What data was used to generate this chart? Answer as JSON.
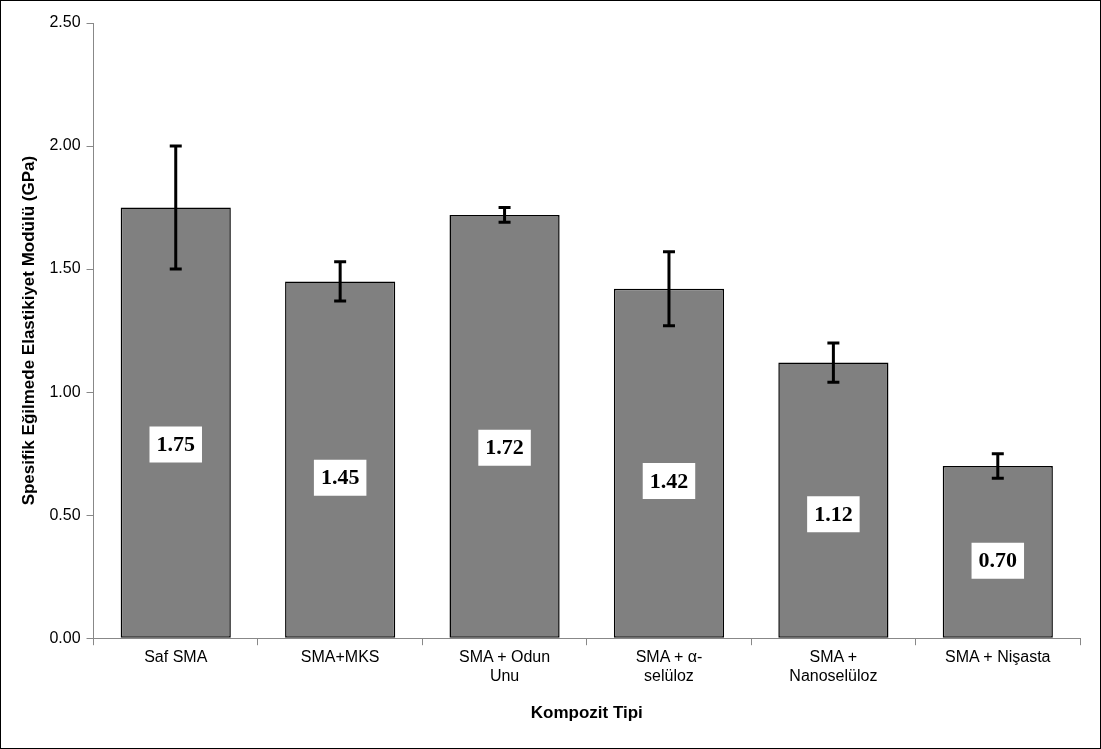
{
  "chart_data": {
    "type": "bar",
    "xlabel": "Kompozit Tipi",
    "ylabel": "Spesifik Eğilmede Elastikiyet Modülü (GPa)",
    "categories": [
      "Saf SMA",
      "SMA+MKS",
      "SMA + Odun Unu",
      "SMA + α-selüloz",
      "SMA + Nanoselüloz",
      "SMA + Nişasta"
    ],
    "values": [
      1.75,
      1.45,
      1.72,
      1.42,
      1.12,
      0.7
    ],
    "errors": [
      0.25,
      0.08,
      0.03,
      0.15,
      0.08,
      0.05
    ],
    "value_labels": [
      "1.75",
      "1.45",
      "1.72",
      "1.42",
      "1.12",
      "0.70"
    ],
    "color": "#808080",
    "ylim": [
      0,
      2.5
    ],
    "yticks": [
      {
        "value": 0,
        "label": "0.00"
      },
      {
        "value": 0.5,
        "label": "0.50"
      },
      {
        "value": 1,
        "label": "1.00"
      },
      {
        "value": 1.5,
        "label": "1.50"
      },
      {
        "value": 2,
        "label": "2.00"
      },
      {
        "value": 2.5,
        "label": "2.50"
      }
    ],
    "grid": false,
    "legend": false
  }
}
